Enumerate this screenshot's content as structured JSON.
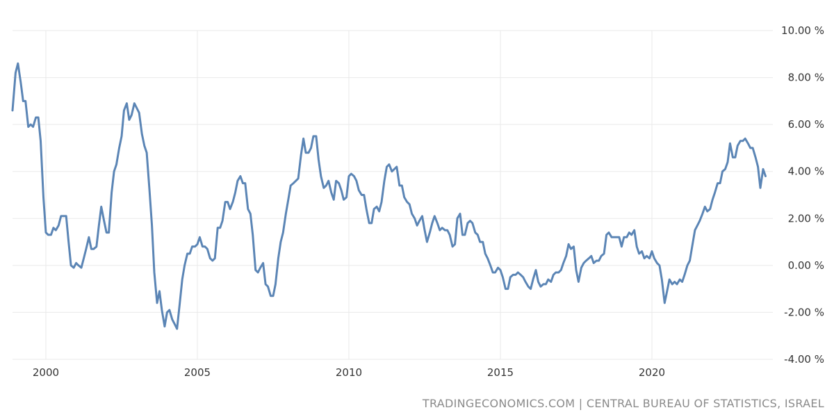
{
  "source_note": "TRADINGECONOMICS.COM | CENTRAL BUREAU OF STATISTICS, ISRAEL",
  "colors": {
    "line": "#5b85b5",
    "grid": "#e9e9e9",
    "text": "#333333",
    "source": "#8a8a8a"
  },
  "chart_data": {
    "type": "line",
    "title": "",
    "xlabel": "",
    "ylabel": "",
    "xlim": [
      1998.9,
      2023.9
    ],
    "ylim": [
      -4,
      10
    ],
    "y_ticks": [
      10,
      8,
      6,
      4,
      2,
      0,
      -2,
      -4
    ],
    "y_tick_labels": [
      "10.00 %",
      "8.00 %",
      "6.00 %",
      "4.00 %",
      "2.00 %",
      "0.00 %",
      "-2.00 %",
      "-4.00 %"
    ],
    "x_ticks": [
      2000,
      2005,
      2010,
      2015,
      2020
    ],
    "x_tick_labels": [
      "2000",
      "2005",
      "2010",
      "2015",
      "2020"
    ],
    "grid": true,
    "y_axis_side": "right",
    "series": [
      {
        "points": [
          [
            1998.9,
            6.6
          ],
          [
            1999.0,
            8.2
          ],
          [
            1999.08,
            8.6
          ],
          [
            1999.17,
            7.8
          ],
          [
            1999.25,
            7.0
          ],
          [
            1999.33,
            7.0
          ],
          [
            1999.42,
            5.9
          ],
          [
            1999.5,
            6.0
          ],
          [
            1999.58,
            5.9
          ],
          [
            1999.67,
            6.3
          ],
          [
            1999.75,
            6.3
          ],
          [
            1999.83,
            5.3
          ],
          [
            1999.92,
            2.9
          ],
          [
            2000.0,
            1.4
          ],
          [
            2000.08,
            1.3
          ],
          [
            2000.17,
            1.3
          ],
          [
            2000.25,
            1.6
          ],
          [
            2000.33,
            1.5
          ],
          [
            2000.42,
            1.7
          ],
          [
            2000.5,
            2.1
          ],
          [
            2000.58,
            2.1
          ],
          [
            2000.67,
            2.1
          ],
          [
            2000.75,
            1.0
          ],
          [
            2000.83,
            0.0
          ],
          [
            2000.92,
            -0.1
          ],
          [
            2001.0,
            0.1
          ],
          [
            2001.08,
            0.0
          ],
          [
            2001.17,
            -0.1
          ],
          [
            2001.25,
            0.3
          ],
          [
            2001.33,
            0.7
          ],
          [
            2001.42,
            1.2
          ],
          [
            2001.5,
            0.7
          ],
          [
            2001.58,
            0.7
          ],
          [
            2001.67,
            0.8
          ],
          [
            2001.75,
            1.7
          ],
          [
            2001.83,
            2.5
          ],
          [
            2001.92,
            1.9
          ],
          [
            2002.0,
            1.4
          ],
          [
            2002.08,
            1.4
          ],
          [
            2002.17,
            3.1
          ],
          [
            2002.25,
            4.0
          ],
          [
            2002.33,
            4.3
          ],
          [
            2002.42,
            5.0
          ],
          [
            2002.5,
            5.5
          ],
          [
            2002.58,
            6.6
          ],
          [
            2002.67,
            6.9
          ],
          [
            2002.75,
            6.2
          ],
          [
            2002.83,
            6.4
          ],
          [
            2002.92,
            6.9
          ],
          [
            2003.0,
            6.7
          ],
          [
            2003.08,
            6.5
          ],
          [
            2003.17,
            5.6
          ],
          [
            2003.25,
            5.1
          ],
          [
            2003.33,
            4.8
          ],
          [
            2003.42,
            3.2
          ],
          [
            2003.5,
            1.7
          ],
          [
            2003.58,
            -0.3
          ],
          [
            2003.67,
            -1.6
          ],
          [
            2003.75,
            -1.1
          ],
          [
            2003.83,
            -1.9
          ],
          [
            2003.92,
            -2.6
          ],
          [
            2004.0,
            -2.0
          ],
          [
            2004.08,
            -1.9
          ],
          [
            2004.17,
            -2.3
          ],
          [
            2004.25,
            -2.5
          ],
          [
            2004.33,
            -2.7
          ],
          [
            2004.42,
            -1.6
          ],
          [
            2004.5,
            -0.6
          ],
          [
            2004.58,
            0.0
          ],
          [
            2004.67,
            0.5
          ],
          [
            2004.75,
            0.5
          ],
          [
            2004.83,
            0.8
          ],
          [
            2004.92,
            0.8
          ],
          [
            2005.0,
            0.9
          ],
          [
            2005.08,
            1.2
          ],
          [
            2005.17,
            0.8
          ],
          [
            2005.25,
            0.8
          ],
          [
            2005.33,
            0.7
          ],
          [
            2005.42,
            0.3
          ],
          [
            2005.5,
            0.2
          ],
          [
            2005.58,
            0.3
          ],
          [
            2005.67,
            1.6
          ],
          [
            2005.75,
            1.6
          ],
          [
            2005.83,
            1.9
          ],
          [
            2005.92,
            2.7
          ],
          [
            2006.0,
            2.7
          ],
          [
            2006.08,
            2.4
          ],
          [
            2006.17,
            2.7
          ],
          [
            2006.25,
            3.1
          ],
          [
            2006.33,
            3.6
          ],
          [
            2006.42,
            3.8
          ],
          [
            2006.5,
            3.5
          ],
          [
            2006.58,
            3.5
          ],
          [
            2006.67,
            2.4
          ],
          [
            2006.75,
            2.2
          ],
          [
            2006.83,
            1.3
          ],
          [
            2006.92,
            -0.2
          ],
          [
            2007.0,
            -0.3
          ],
          [
            2007.08,
            -0.1
          ],
          [
            2007.17,
            0.1
          ],
          [
            2007.25,
            -0.8
          ],
          [
            2007.33,
            -0.9
          ],
          [
            2007.42,
            -1.3
          ],
          [
            2007.5,
            -1.3
          ],
          [
            2007.58,
            -0.8
          ],
          [
            2007.67,
            0.3
          ],
          [
            2007.75,
            1.0
          ],
          [
            2007.83,
            1.4
          ],
          [
            2007.92,
            2.2
          ],
          [
            2008.0,
            2.8
          ],
          [
            2008.08,
            3.4
          ],
          [
            2008.17,
            3.5
          ],
          [
            2008.25,
            3.6
          ],
          [
            2008.33,
            3.7
          ],
          [
            2008.42,
            4.7
          ],
          [
            2008.5,
            5.4
          ],
          [
            2008.58,
            4.8
          ],
          [
            2008.67,
            4.8
          ],
          [
            2008.75,
            5.0
          ],
          [
            2008.83,
            5.5
          ],
          [
            2008.92,
            5.5
          ],
          [
            2009.0,
            4.5
          ],
          [
            2009.08,
            3.8
          ],
          [
            2009.17,
            3.3
          ],
          [
            2009.25,
            3.4
          ],
          [
            2009.33,
            3.6
          ],
          [
            2009.42,
            3.1
          ],
          [
            2009.5,
            2.8
          ],
          [
            2009.58,
            3.6
          ],
          [
            2009.67,
            3.5
          ],
          [
            2009.75,
            3.2
          ],
          [
            2009.83,
            2.8
          ],
          [
            2009.92,
            2.9
          ],
          [
            2010.0,
            3.8
          ],
          [
            2010.08,
            3.9
          ],
          [
            2010.17,
            3.8
          ],
          [
            2010.25,
            3.6
          ],
          [
            2010.33,
            3.2
          ],
          [
            2010.42,
            3.0
          ],
          [
            2010.5,
            3.0
          ],
          [
            2010.58,
            2.4
          ],
          [
            2010.67,
            1.8
          ],
          [
            2010.75,
            1.8
          ],
          [
            2010.83,
            2.4
          ],
          [
            2010.92,
            2.5
          ],
          [
            2011.0,
            2.3
          ],
          [
            2011.08,
            2.7
          ],
          [
            2011.17,
            3.6
          ],
          [
            2011.25,
            4.2
          ],
          [
            2011.33,
            4.3
          ],
          [
            2011.42,
            4.0
          ],
          [
            2011.5,
            4.1
          ],
          [
            2011.58,
            4.2
          ],
          [
            2011.67,
            3.4
          ],
          [
            2011.75,
            3.4
          ],
          [
            2011.83,
            2.9
          ],
          [
            2011.92,
            2.7
          ],
          [
            2012.0,
            2.6
          ],
          [
            2012.08,
            2.2
          ],
          [
            2012.17,
            2.0
          ],
          [
            2012.25,
            1.7
          ],
          [
            2012.33,
            1.9
          ],
          [
            2012.42,
            2.1
          ],
          [
            2012.5,
            1.5
          ],
          [
            2012.58,
            1.0
          ],
          [
            2012.67,
            1.4
          ],
          [
            2012.75,
            1.8
          ],
          [
            2012.83,
            2.1
          ],
          [
            2012.92,
            1.8
          ],
          [
            2013.0,
            1.5
          ],
          [
            2013.08,
            1.6
          ],
          [
            2013.17,
            1.5
          ],
          [
            2013.25,
            1.5
          ],
          [
            2013.33,
            1.3
          ],
          [
            2013.42,
            0.8
          ],
          [
            2013.5,
            0.9
          ],
          [
            2013.58,
            2.0
          ],
          [
            2013.67,
            2.2
          ],
          [
            2013.75,
            1.3
          ],
          [
            2013.83,
            1.3
          ],
          [
            2013.92,
            1.8
          ],
          [
            2014.0,
            1.9
          ],
          [
            2014.08,
            1.8
          ],
          [
            2014.17,
            1.4
          ],
          [
            2014.25,
            1.3
          ],
          [
            2014.33,
            1.0
          ],
          [
            2014.42,
            1.0
          ],
          [
            2014.5,
            0.5
          ],
          [
            2014.58,
            0.3
          ],
          [
            2014.67,
            0.0
          ],
          [
            2014.75,
            -0.3
          ],
          [
            2014.83,
            -0.3
          ],
          [
            2014.92,
            -0.1
          ],
          [
            2015.0,
            -0.2
          ],
          [
            2015.08,
            -0.5
          ],
          [
            2015.17,
            -1.0
          ],
          [
            2015.25,
            -1.0
          ],
          [
            2015.33,
            -0.5
          ],
          [
            2015.42,
            -0.4
          ],
          [
            2015.5,
            -0.4
          ],
          [
            2015.58,
            -0.3
          ],
          [
            2015.67,
            -0.4
          ],
          [
            2015.75,
            -0.5
          ],
          [
            2015.83,
            -0.7
          ],
          [
            2015.92,
            -0.9
          ],
          [
            2016.0,
            -1.0
          ],
          [
            2016.08,
            -0.6
          ],
          [
            2016.17,
            -0.2
          ],
          [
            2016.25,
            -0.7
          ],
          [
            2016.33,
            -0.9
          ],
          [
            2016.42,
            -0.8
          ],
          [
            2016.5,
            -0.8
          ],
          [
            2016.58,
            -0.6
          ],
          [
            2016.67,
            -0.7
          ],
          [
            2016.75,
            -0.4
          ],
          [
            2016.83,
            -0.3
          ],
          [
            2016.92,
            -0.3
          ],
          [
            2017.0,
            -0.2
          ],
          [
            2017.08,
            0.1
          ],
          [
            2017.17,
            0.4
          ],
          [
            2017.25,
            0.9
          ],
          [
            2017.33,
            0.7
          ],
          [
            2017.42,
            0.8
          ],
          [
            2017.5,
            -0.2
          ],
          [
            2017.58,
            -0.7
          ],
          [
            2017.67,
            -0.1
          ],
          [
            2017.75,
            0.1
          ],
          [
            2017.83,
            0.2
          ],
          [
            2017.92,
            0.3
          ],
          [
            2018.0,
            0.4
          ],
          [
            2018.08,
            0.1
          ],
          [
            2018.17,
            0.2
          ],
          [
            2018.25,
            0.2
          ],
          [
            2018.33,
            0.4
          ],
          [
            2018.42,
            0.5
          ],
          [
            2018.5,
            1.3
          ],
          [
            2018.58,
            1.4
          ],
          [
            2018.67,
            1.2
          ],
          [
            2018.75,
            1.2
          ],
          [
            2018.83,
            1.2
          ],
          [
            2018.92,
            1.2
          ],
          [
            2019.0,
            0.8
          ],
          [
            2019.08,
            1.2
          ],
          [
            2019.17,
            1.2
          ],
          [
            2019.25,
            1.4
          ],
          [
            2019.33,
            1.3
          ],
          [
            2019.42,
            1.5
          ],
          [
            2019.5,
            0.8
          ],
          [
            2019.58,
            0.5
          ],
          [
            2019.67,
            0.6
          ],
          [
            2019.75,
            0.3
          ],
          [
            2019.83,
            0.4
          ],
          [
            2019.92,
            0.3
          ],
          [
            2020.0,
            0.6
          ],
          [
            2020.08,
            0.3
          ],
          [
            2020.17,
            0.1
          ],
          [
            2020.25,
            0.0
          ],
          [
            2020.33,
            -0.6
          ],
          [
            2020.42,
            -1.6
          ],
          [
            2020.5,
            -1.1
          ],
          [
            2020.58,
            -0.6
          ],
          [
            2020.67,
            -0.8
          ],
          [
            2020.75,
            -0.7
          ],
          [
            2020.83,
            -0.8
          ],
          [
            2020.92,
            -0.6
          ],
          [
            2021.0,
            -0.7
          ],
          [
            2021.08,
            -0.4
          ],
          [
            2021.17,
            0.0
          ],
          [
            2021.25,
            0.2
          ],
          [
            2021.33,
            0.8
          ],
          [
            2021.42,
            1.5
          ],
          [
            2021.5,
            1.7
          ],
          [
            2021.58,
            1.9
          ],
          [
            2021.67,
            2.2
          ],
          [
            2021.75,
            2.5
          ],
          [
            2021.83,
            2.3
          ],
          [
            2021.92,
            2.4
          ],
          [
            2022.0,
            2.8
          ],
          [
            2022.08,
            3.1
          ],
          [
            2022.17,
            3.5
          ],
          [
            2022.25,
            3.5
          ],
          [
            2022.33,
            4.0
          ],
          [
            2022.42,
            4.1
          ],
          [
            2022.5,
            4.4
          ],
          [
            2022.58,
            5.2
          ],
          [
            2022.67,
            4.6
          ],
          [
            2022.75,
            4.6
          ],
          [
            2022.83,
            5.1
          ],
          [
            2022.92,
            5.3
          ],
          [
            2023.0,
            5.3
          ],
          [
            2023.08,
            5.4
          ],
          [
            2023.17,
            5.2
          ],
          [
            2023.25,
            5.0
          ],
          [
            2023.33,
            5.0
          ],
          [
            2023.42,
            4.6
          ],
          [
            2023.5,
            4.2
          ],
          [
            2023.58,
            3.3
          ],
          [
            2023.67,
            4.1
          ],
          [
            2023.75,
            3.8
          ]
        ]
      }
    ]
  }
}
